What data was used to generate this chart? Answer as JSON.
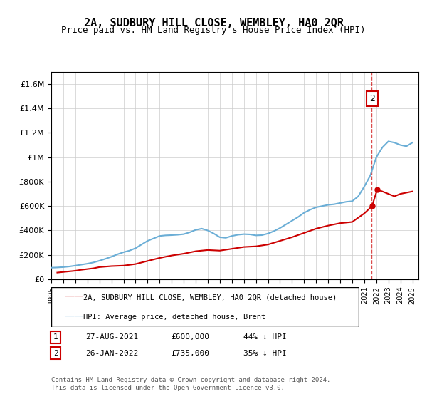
{
  "title": "2A, SUDBURY HILL CLOSE, WEMBLEY, HA0 2QR",
  "subtitle": "Price paid vs. HM Land Registry's House Price Index (HPI)",
  "hpi_label": "HPI: Average price, detached house, Brent",
  "price_label": "2A, SUDBURY HILL CLOSE, WEMBLEY, HA0 2QR (detached house)",
  "hpi_color": "#6baed6",
  "price_color": "#cc0000",
  "dashed_line_color": "#cc0000",
  "annotation_box_color": "#cc0000",
  "ylim": [
    0,
    1700000
  ],
  "yticks": [
    0,
    200000,
    400000,
    600000,
    800000,
    1000000,
    1200000,
    1400000,
    1600000
  ],
  "ytick_labels": [
    "£0",
    "£200K",
    "£400K",
    "£600K",
    "£800K",
    "£1M",
    "£1.2M",
    "£1.4M",
    "£1.6M"
  ],
  "xlim_start": 1995.0,
  "xlim_end": 2025.5,
  "transactions": [
    {
      "date": 2021.65,
      "price": 600000,
      "label": "1"
    },
    {
      "date": 2022.07,
      "price": 735000,
      "label": "2"
    }
  ],
  "transaction_table": [
    {
      "num": "1",
      "date": "27-AUG-2021",
      "price": "£600,000",
      "hpi_diff": "44% ↓ HPI"
    },
    {
      "num": "2",
      "date": "26-JAN-2022",
      "price": "£735,000",
      "hpi_diff": "35% ↓ HPI"
    }
  ],
  "footer": "Contains HM Land Registry data © Crown copyright and database right 2024.\nThis data is licensed under the Open Government Licence v3.0.",
  "hpi_x": [
    1995.0,
    1995.5,
    1996.0,
    1996.5,
    1997.0,
    1997.5,
    1998.0,
    1998.5,
    1999.0,
    1999.5,
    2000.0,
    2000.5,
    2001.0,
    2001.5,
    2002.0,
    2002.5,
    2003.0,
    2003.5,
    2004.0,
    2004.5,
    2005.0,
    2005.5,
    2006.0,
    2006.5,
    2007.0,
    2007.5,
    2008.0,
    2008.5,
    2009.0,
    2009.5,
    2010.0,
    2010.5,
    2011.0,
    2011.5,
    2012.0,
    2012.5,
    2013.0,
    2013.5,
    2014.0,
    2014.5,
    2015.0,
    2015.5,
    2016.0,
    2016.5,
    2017.0,
    2017.5,
    2018.0,
    2018.5,
    2019.0,
    2019.5,
    2020.0,
    2020.5,
    2021.0,
    2021.5,
    2022.0,
    2022.5,
    2023.0,
    2023.5,
    2024.0,
    2024.5,
    2025.0
  ],
  "hpi_y": [
    95000,
    97000,
    100000,
    105000,
    112000,
    120000,
    128000,
    138000,
    152000,
    168000,
    185000,
    205000,
    222000,
    235000,
    255000,
    285000,
    315000,
    335000,
    355000,
    360000,
    362000,
    365000,
    370000,
    385000,
    405000,
    415000,
    400000,
    375000,
    345000,
    340000,
    355000,
    365000,
    370000,
    368000,
    360000,
    362000,
    375000,
    395000,
    420000,
    450000,
    480000,
    510000,
    545000,
    570000,
    590000,
    600000,
    610000,
    615000,
    625000,
    635000,
    640000,
    680000,
    760000,
    850000,
    1000000,
    1080000,
    1130000,
    1120000,
    1100000,
    1090000,
    1120000
  ],
  "price_x": [
    1995.5,
    1996.0,
    1997.0,
    1997.5,
    1998.5,
    1999.0,
    2000.0,
    2001.0,
    2002.0,
    2003.0,
    2004.0,
    2005.0,
    2006.0,
    2007.0,
    2008.0,
    2009.0,
    2010.0,
    2011.0,
    2012.0,
    2013.0,
    2014.0,
    2015.0,
    2016.0,
    2017.0,
    2018.0,
    2019.0,
    2020.0,
    2021.0,
    2021.65,
    2022.07,
    2022.5,
    2023.0,
    2023.5,
    2024.0,
    2024.5,
    2025.0
  ],
  "price_y": [
    55000,
    60000,
    70000,
    78000,
    90000,
    100000,
    108000,
    112000,
    125000,
    150000,
    175000,
    195000,
    210000,
    230000,
    240000,
    235000,
    250000,
    265000,
    270000,
    285000,
    315000,
    345000,
    380000,
    415000,
    440000,
    460000,
    470000,
    540000,
    600000,
    735000,
    720000,
    700000,
    680000,
    700000,
    710000,
    720000
  ]
}
